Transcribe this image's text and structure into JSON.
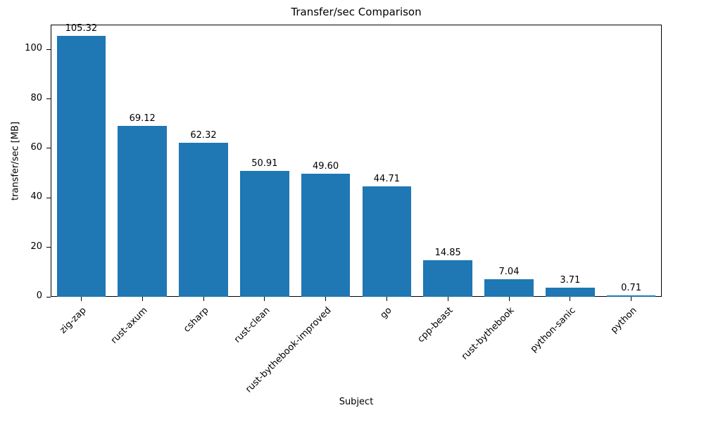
{
  "chart_data": {
    "type": "bar",
    "title": "Transfer/sec Comparison",
    "xlabel": "Subject",
    "ylabel": "transfer/sec [MB]",
    "categories": [
      "zig-zap",
      "rust-axum",
      "csharp",
      "rust-clean",
      "rust-bythebook-improved",
      "go",
      "cpp-beast",
      "rust-bythebook",
      "python-sanic",
      "python"
    ],
    "values": [
      105.32,
      69.12,
      62.32,
      50.91,
      49.6,
      44.71,
      14.85,
      7.04,
      3.71,
      0.71
    ],
    "value_labels": [
      "105.32",
      "69.12",
      "62.32",
      "50.91",
      "49.60",
      "44.71",
      "14.85",
      "7.04",
      "3.71",
      "0.71"
    ],
    "ylim": [
      0,
      110
    ],
    "yticks": [
      0,
      20,
      40,
      60,
      80,
      100
    ],
    "bar_color": "#1f77b4",
    "grid": false,
    "legend": false
  }
}
